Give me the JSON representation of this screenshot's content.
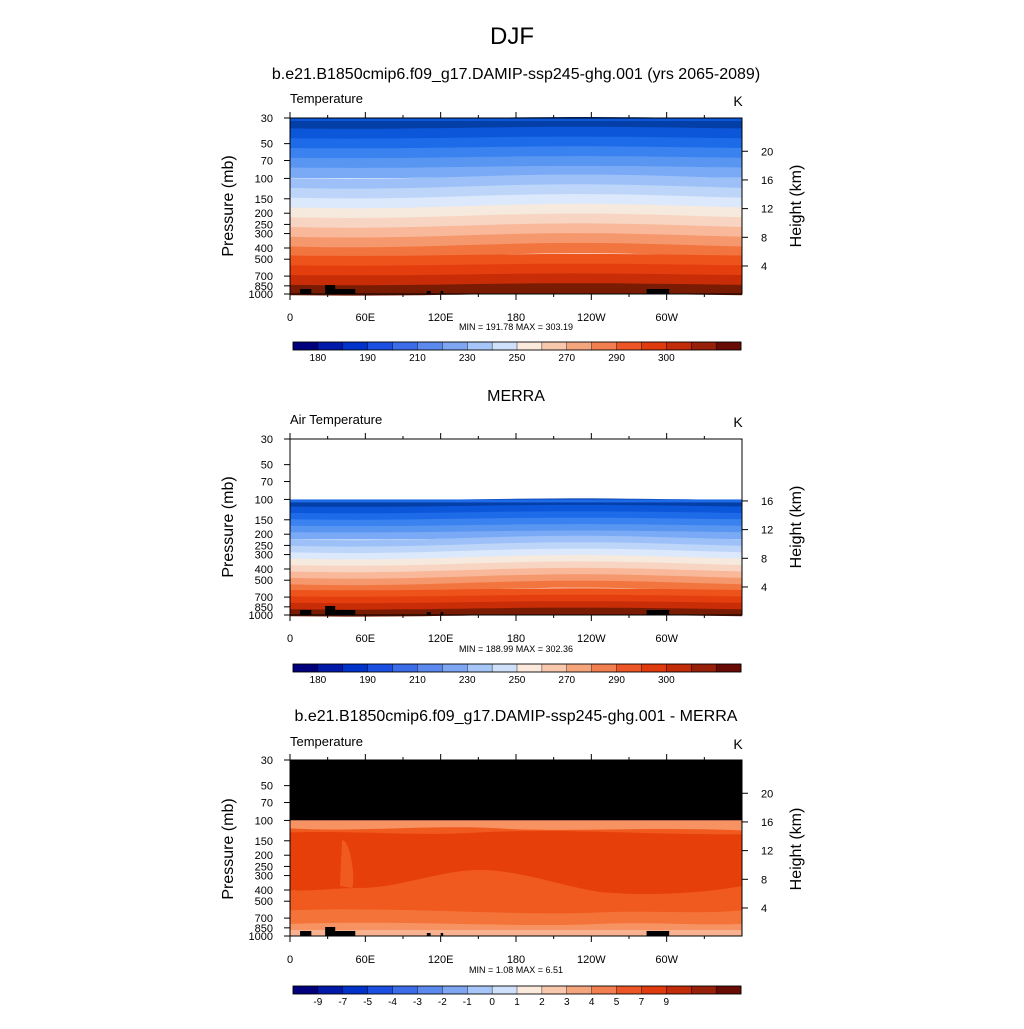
{
  "page": {
    "title": "DJF"
  },
  "colors": {
    "panel1_bands": [
      "#043fa8",
      "#0c56d9",
      "#1d6be9",
      "#3a82ef",
      "#5996f2",
      "#7aaaf5",
      "#9cc0f7",
      "#bcd5f9",
      "#dce8fb",
      "#f6e9de",
      "#f8d5c2",
      "#f8b899",
      "#f6986d",
      "#f27540",
      "#ee531c",
      "#e43e0e",
      "#c82d08",
      "#7a1b04"
    ],
    "diff_bands": [
      "#e73f09",
      "#f05a1f",
      "#f47338",
      "#f79263",
      "#f9b290",
      "#fbd0bb",
      "#fde4d6"
    ],
    "colorbar": [
      "#00007d",
      "#0019a9",
      "#0033c9",
      "#1b4fe2",
      "#3d6ce8",
      "#5b89ee",
      "#7ea6f3",
      "#a6c6f8",
      "#cfe0fb",
      "#fbe9dc",
      "#f8c8ad",
      "#f5a57c",
      "#f17f4f",
      "#ec5626",
      "#e03b0f",
      "#c22c08",
      "#97200a",
      "#690b05"
    ],
    "land": "#000000"
  },
  "chart_data": [
    {
      "type": "heatmap",
      "title": "b.e21.B1850cmip6.f09_g17.DAMIP-ssp245-ghg.001 (yrs 2065-2089)",
      "left_string": "Temperature",
      "units": "K",
      "ylabel": "Pressure (mb)",
      "ylabel_right": "Height (km)",
      "x_ticks": [
        "0",
        "60E",
        "120E",
        "180",
        "120W",
        "60W"
      ],
      "x_values": [
        0,
        60,
        120,
        180,
        240,
        300
      ],
      "xlim": [
        0,
        360
      ],
      "y_ticks": [
        "30",
        "50",
        "70",
        "100",
        "150",
        "200",
        "250",
        "300",
        "400",
        "500",
        "700",
        "850",
        "1000"
      ],
      "y_values": [
        30,
        50,
        70,
        100,
        150,
        200,
        250,
        300,
        400,
        500,
        700,
        850,
        1000
      ],
      "ylim_mb": [
        1000,
        30
      ],
      "height_ticks": [
        "4",
        "8",
        "12",
        "16",
        "20"
      ],
      "height_values": [
        4,
        8,
        12,
        16,
        20
      ],
      "stats": "MIN = 191.78  MAX = 303.19",
      "min": 191.78,
      "max": 303.19,
      "colorbar_labels": [
        "180",
        "190",
        "210",
        "230",
        "250",
        "270",
        "290",
        "300"
      ],
      "colorbar_values": [
        180,
        190,
        210,
        230,
        250,
        270,
        290,
        300
      ],
      "data_top_mb": 30
    },
    {
      "type": "heatmap",
      "title": "MERRA",
      "left_string": "Air Temperature",
      "units": "K",
      "ylabel": "Pressure (mb)",
      "ylabel_right": "Height (km)",
      "x_ticks": [
        "0",
        "60E",
        "120E",
        "180",
        "120W",
        "60W"
      ],
      "x_values": [
        0,
        60,
        120,
        180,
        240,
        300
      ],
      "xlim": [
        0,
        360
      ],
      "y_ticks": [
        "30",
        "50",
        "70",
        "100",
        "150",
        "200",
        "250",
        "300",
        "400",
        "500",
        "700",
        "850",
        "1000"
      ],
      "y_values": [
        30,
        50,
        70,
        100,
        150,
        200,
        250,
        300,
        400,
        500,
        700,
        850,
        1000
      ],
      "ylim_mb": [
        1000,
        30
      ],
      "height_ticks": [
        "4",
        "8",
        "12",
        "16"
      ],
      "height_values": [
        4,
        8,
        12,
        16
      ],
      "stats": "MIN = 188.99  MAX = 302.36",
      "min": 188.99,
      "max": 302.36,
      "colorbar_labels": [
        "180",
        "190",
        "210",
        "230",
        "250",
        "270",
        "290",
        "300"
      ],
      "colorbar_values": [
        180,
        190,
        210,
        230,
        250,
        270,
        290,
        300
      ],
      "data_top_mb": 100
    },
    {
      "type": "heatmap",
      "title": "b.e21.B1850cmip6.f09_g17.DAMIP-ssp245-ghg.001 - MERRA",
      "left_string": "Temperature",
      "units": "K",
      "ylabel": "Pressure (mb)",
      "ylabel_right": "Height (km)",
      "x_ticks": [
        "0",
        "60E",
        "120E",
        "180",
        "120W",
        "60W"
      ],
      "x_values": [
        0,
        60,
        120,
        180,
        240,
        300
      ],
      "xlim": [
        0,
        360
      ],
      "y_ticks": [
        "30",
        "50",
        "70",
        "100",
        "150",
        "200",
        "250",
        "300",
        "400",
        "500",
        "700",
        "850",
        "1000"
      ],
      "y_values": [
        30,
        50,
        70,
        100,
        150,
        200,
        250,
        300,
        400,
        500,
        700,
        850,
        1000
      ],
      "ylim_mb": [
        1000,
        30
      ],
      "height_ticks": [
        "4",
        "8",
        "12",
        "16",
        "20"
      ],
      "height_values": [
        4,
        8,
        12,
        16,
        20
      ],
      "stats": "MIN =   1.08  MAX =   6.51",
      "min": 1.08,
      "max": 6.51,
      "colorbar_labels": [
        "-9",
        "-7",
        "-5",
        "-4",
        "-3",
        "-2",
        "-1",
        "0",
        "1",
        "2",
        "3",
        "4",
        "5",
        "7",
        "9"
      ],
      "colorbar_values": [
        -9,
        -7,
        -5,
        -4,
        -3,
        -2,
        -1,
        0,
        1,
        2,
        3,
        4,
        5,
        7,
        9
      ],
      "data_top_mb": 100,
      "masked_above_mb": 100
    }
  ]
}
